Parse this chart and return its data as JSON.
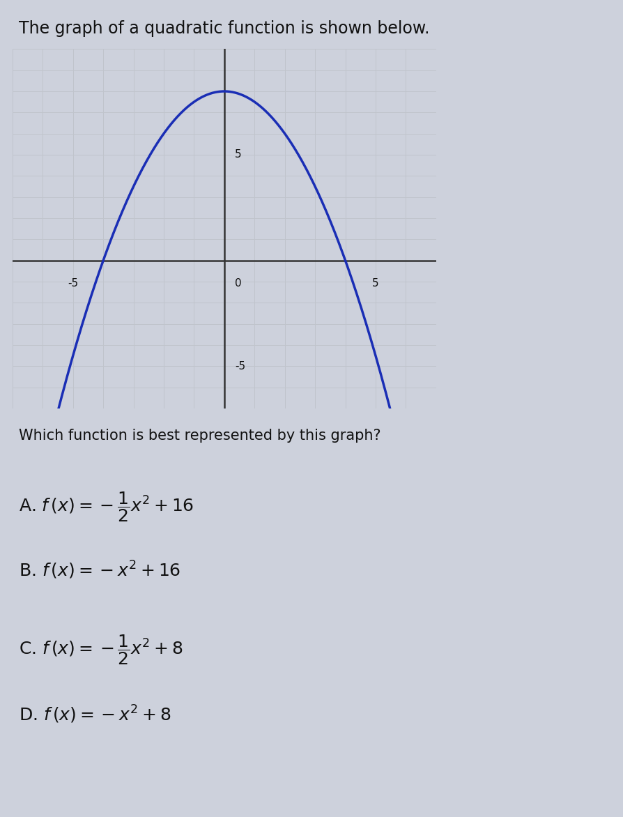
{
  "title_text": "The graph of a quadratic function is shown below.",
  "question_text": "Which function is best represented by this graph?",
  "parabola_a": -0.5,
  "parabola_c": 8,
  "x_range": [
    -7,
    7
  ],
  "y_range": [
    -7,
    10
  ],
  "x_ticks_labeled": [
    -5,
    0,
    5
  ],
  "y_ticks_labeled": [
    -5,
    5
  ],
  "grid_color": "#c0c4cc",
  "axis_color": "#333333",
  "curve_color": "#1a2eb5",
  "background_color": "#cdd1dc",
  "text_color": "#111111",
  "title_fontsize": 17,
  "question_fontsize": 15,
  "option_fontsize": 15,
  "curve_linewidth": 2.5,
  "axis_linewidth": 1.8
}
